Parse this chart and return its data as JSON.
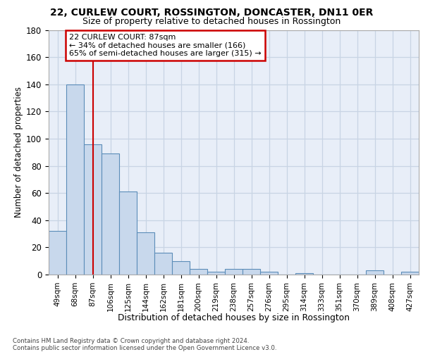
{
  "title1": "22, CURLEW COURT, ROSSINGTON, DONCASTER, DN11 0ER",
  "title2": "Size of property relative to detached houses in Rossington",
  "xlabel": "Distribution of detached houses by size in Rossington",
  "ylabel": "Number of detached properties",
  "categories": [
    "49sqm",
    "68sqm",
    "87sqm",
    "106sqm",
    "125sqm",
    "144sqm",
    "162sqm",
    "181sqm",
    "200sqm",
    "219sqm",
    "238sqm",
    "257sqm",
    "276sqm",
    "295sqm",
    "314sqm",
    "333sqm",
    "351sqm",
    "370sqm",
    "389sqm",
    "408sqm",
    "427sqm"
  ],
  "values": [
    32,
    140,
    96,
    89,
    61,
    31,
    16,
    10,
    4,
    2,
    4,
    4,
    2,
    0,
    1,
    0,
    0,
    0,
    3,
    0,
    2
  ],
  "bar_color": "#c8d8ec",
  "bar_edge_color": "#5b8db8",
  "highlight_x_label": "87sqm",
  "highlight_line_color": "#cc0000",
  "annotation_line1": "22 CURLEW COURT: 87sqm",
  "annotation_line2": "← 34% of detached houses are smaller (166)",
  "annotation_line3": "65% of semi-detached houses are larger (315) →",
  "annotation_box_edgecolor": "#cc0000",
  "ylim": [
    0,
    180
  ],
  "yticks": [
    0,
    20,
    40,
    60,
    80,
    100,
    120,
    140,
    160,
    180
  ],
  "grid_color": "#c8d4e4",
  "bg_color": "#e8eef8",
  "footer1": "Contains HM Land Registry data © Crown copyright and database right 2024.",
  "footer2": "Contains public sector information licensed under the Open Government Licence v3.0."
}
